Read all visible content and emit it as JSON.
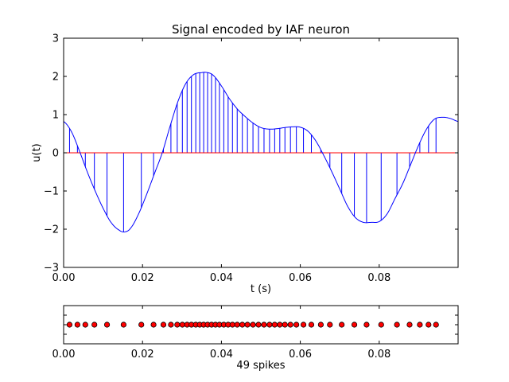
{
  "chart_data": [
    {
      "type": "line",
      "title": "Signal encoded by IAF neuron",
      "xlabel": "t (s)",
      "ylabel": "u(t)",
      "xlim": [
        0,
        0.1
      ],
      "ylim": [
        -3,
        3
      ],
      "xticks": [
        "0.00",
        "0.02",
        "0.04",
        "0.06",
        "0.08"
      ],
      "xtick_values": [
        0,
        0.02,
        0.04,
        0.06,
        0.08
      ],
      "yticks": [
        "−3",
        "−2",
        "−1",
        "0",
        "1",
        "2",
        "3"
      ],
      "ytick_values": [
        -3,
        -2,
        -1,
        0,
        1,
        2,
        3
      ],
      "grid": false,
      "signal_color": "#0000ff",
      "zero_line_color": "#ff0000",
      "stem_color": "#0000ff",
      "signal": {
        "t": [
          0,
          0.002,
          0.004,
          0.006,
          0.008,
          0.01,
          0.012,
          0.014,
          0.0155,
          0.017,
          0.019,
          0.021,
          0.023,
          0.025,
          0.027,
          0.029,
          0.031,
          0.033,
          0.035,
          0.0365,
          0.038,
          0.04,
          0.042,
          0.044,
          0.046,
          0.048,
          0.05,
          0.052,
          0.054,
          0.056,
          0.058,
          0.06,
          0.062,
          0.064,
          0.066,
          0.068,
          0.07,
          0.072,
          0.074,
          0.076,
          0.078,
          0.08,
          0.082,
          0.084,
          0.086,
          0.088,
          0.09,
          0.092,
          0.094,
          0.096,
          0.098,
          0.1
        ],
        "u": [
          0.82,
          0.55,
          0.05,
          -0.5,
          -1.0,
          -1.45,
          -1.82,
          -2.02,
          -2.07,
          -1.97,
          -1.6,
          -1.1,
          -0.55,
          0.0,
          0.7,
          1.35,
          1.82,
          2.05,
          2.1,
          2.1,
          2.02,
          1.75,
          1.42,
          1.15,
          0.95,
          0.78,
          0.66,
          0.62,
          0.63,
          0.66,
          0.68,
          0.67,
          0.56,
          0.3,
          -0.08,
          -0.5,
          -0.95,
          -1.4,
          -1.7,
          -1.82,
          -1.82,
          -1.8,
          -1.6,
          -1.2,
          -0.8,
          -0.3,
          0.2,
          0.62,
          0.88,
          0.93,
          0.9,
          0.82
        ]
      },
      "spike_times": [
        0.0015,
        0.0035,
        0.0055,
        0.0078,
        0.011,
        0.0152,
        0.0197,
        0.0228,
        0.0253,
        0.0272,
        0.0288,
        0.0301,
        0.0313,
        0.0324,
        0.0335,
        0.0345,
        0.0355,
        0.0365,
        0.0375,
        0.0385,
        0.0395,
        0.0406,
        0.0417,
        0.0428,
        0.044,
        0.0453,
        0.0466,
        0.048,
        0.0494,
        0.0508,
        0.0522,
        0.0535,
        0.0548,
        0.0561,
        0.0575,
        0.059,
        0.0608,
        0.0628,
        0.0652,
        0.0675,
        0.0705,
        0.0737,
        0.0768,
        0.0805,
        0.0845,
        0.0877,
        0.0903,
        0.0925,
        0.0944
      ]
    },
    {
      "type": "scatter",
      "xlabel": "49 spikes",
      "xlim": [
        0,
        0.1
      ],
      "xticks": [
        "0.00",
        "0.02",
        "0.04",
        "0.06",
        "0.08"
      ],
      "xtick_values": [
        0,
        0.02,
        0.04,
        0.06,
        0.08
      ],
      "marker_color": "#ff0000",
      "marker_edge": "#000000",
      "spike_times": [
        0.0015,
        0.0035,
        0.0055,
        0.0078,
        0.011,
        0.0152,
        0.0197,
        0.0228,
        0.0253,
        0.0272,
        0.0288,
        0.0301,
        0.0313,
        0.0324,
        0.0335,
        0.0345,
        0.0355,
        0.0365,
        0.0375,
        0.0385,
        0.0395,
        0.0406,
        0.0417,
        0.0428,
        0.044,
        0.0453,
        0.0466,
        0.048,
        0.0494,
        0.0508,
        0.0522,
        0.0535,
        0.0548,
        0.0561,
        0.0575,
        0.059,
        0.0608,
        0.0628,
        0.0652,
        0.0675,
        0.0705,
        0.0737,
        0.0768,
        0.0805,
        0.0845,
        0.0877,
        0.0903,
        0.0925,
        0.0944
      ]
    }
  ]
}
